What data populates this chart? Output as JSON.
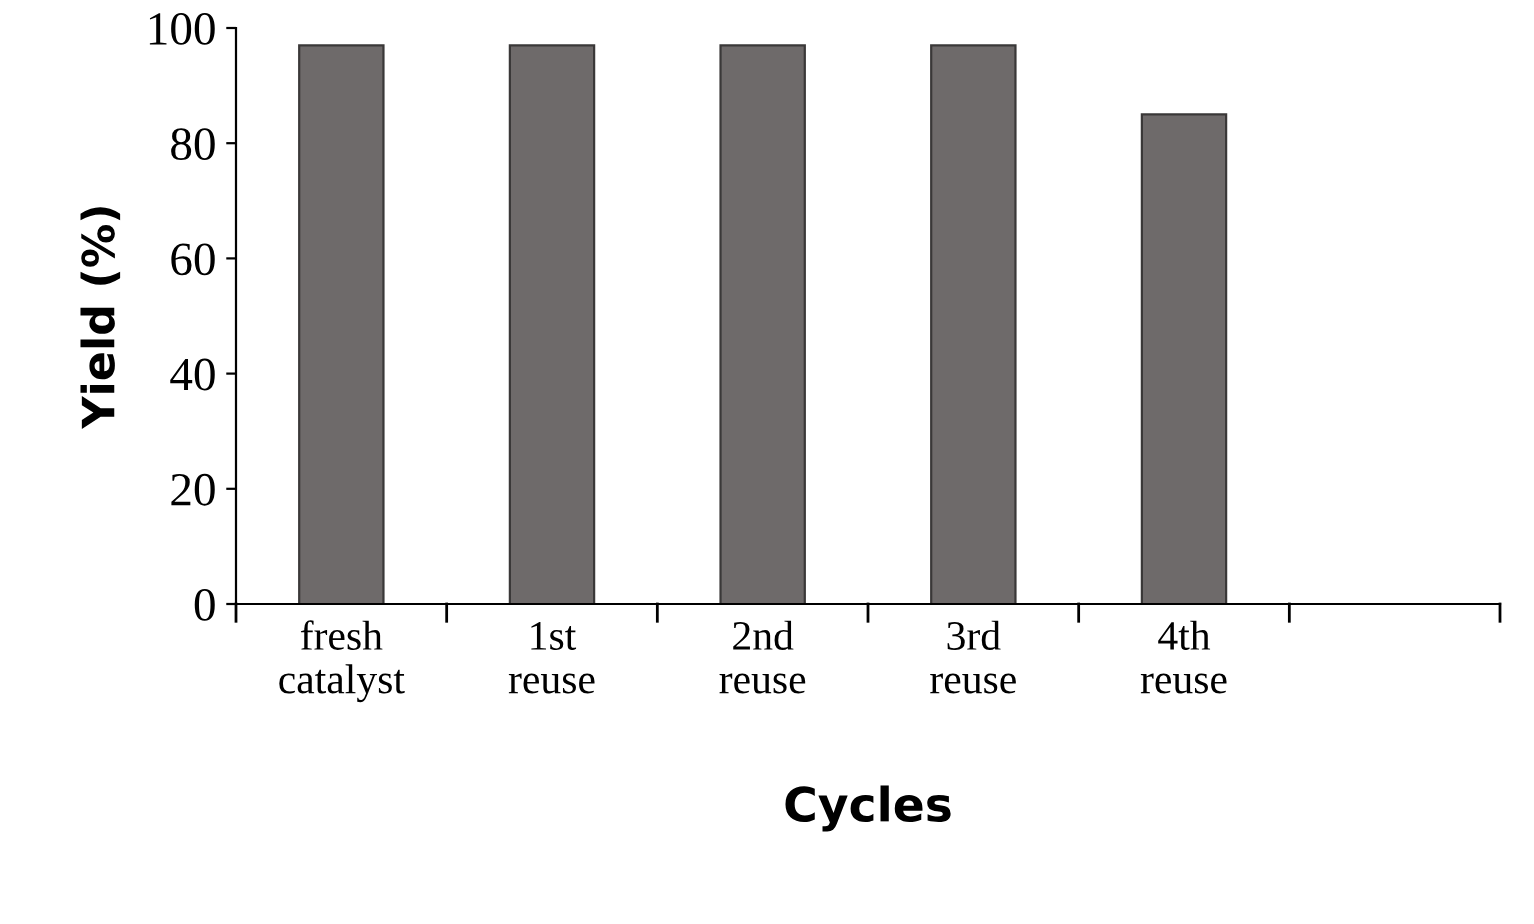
{
  "chart_data": {
    "type": "bar",
    "xlabel": "Cycles",
    "ylabel": "Yield (%)",
    "categories": [
      "fresh\ncatalyst",
      "1st\nreuse",
      "2nd\nreuse",
      "3rd\nreuse",
      "4th\nreuse",
      null
    ],
    "values": [
      97,
      97,
      97,
      97,
      85,
      null
    ],
    "color": "#6e6a6a",
    "ylim": [
      0,
      100
    ],
    "yticks": [
      0,
      20,
      40,
      60,
      80,
      100
    ],
    "grid": false,
    "legend": false
  }
}
